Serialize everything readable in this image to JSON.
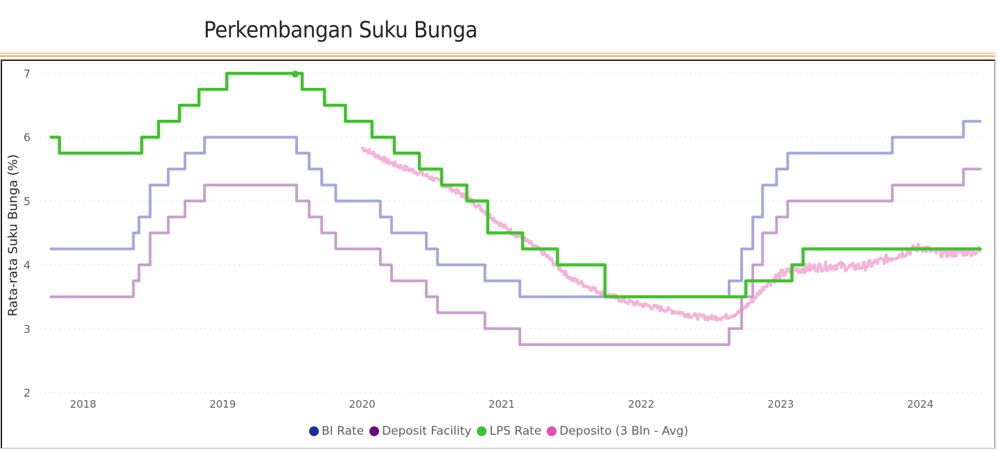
{
  "title": "Perkembangan Suku Bunga",
  "colors": {
    "accent_rule_light": "#f9c99a",
    "accent_rule_dark": "#f2a55d",
    "bi_rate_line": "#a3a8dc",
    "deposit_facility_line": "#c99fcf",
    "lps_rate_line": "#3ec42a",
    "deposito_line": "#f5b3d9",
    "bi_rate_legend": "#1a2ea0",
    "deposit_facility_legend": "#6b0a7e",
    "lps_rate_legend": "#39c22b",
    "deposito_legend": "#e64db5"
  },
  "legend": [
    {
      "label": "BI Rate",
      "color": "#1a2ea0"
    },
    {
      "label": "Deposit Facility",
      "color": "#6b0a7e"
    },
    {
      "label": "LPS Rate",
      "color": "#39c22b"
    },
    {
      "label": "Deposito (3 Bln - Avg)",
      "color": "#e64db5"
    }
  ],
  "chart_data": {
    "type": "line",
    "title": "Perkembangan Suku Bunga",
    "xlabel": "",
    "ylabel": "Rata-rata Suku Bunga (%)",
    "ylim": [
      2,
      7
    ],
    "yticks": [
      2,
      3,
      4,
      5,
      6,
      7
    ],
    "xlim": [
      2017.77,
      2024.43
    ],
    "xticks": [
      2018,
      2019,
      2020,
      2021,
      2022,
      2023,
      2024
    ],
    "xtick_labels": [
      "2018",
      "2019",
      "2020",
      "2021",
      "2022",
      "2023",
      "2024"
    ],
    "grid": "horizontal-dotted",
    "legend_position": "bottom",
    "series": [
      {
        "name": "BI Rate",
        "step": true,
        "points": [
          [
            2017.77,
            4.25
          ],
          [
            2018.36,
            4.5
          ],
          [
            2018.4,
            4.75
          ],
          [
            2018.48,
            5.25
          ],
          [
            2018.61,
            5.5
          ],
          [
            2018.73,
            5.75
          ],
          [
            2018.87,
            6.0
          ],
          [
            2019.53,
            5.75
          ],
          [
            2019.62,
            5.5
          ],
          [
            2019.71,
            5.25
          ],
          [
            2019.81,
            5.0
          ],
          [
            2020.13,
            4.75
          ],
          [
            2020.21,
            4.5
          ],
          [
            2020.46,
            4.25
          ],
          [
            2020.54,
            4.0
          ],
          [
            2020.88,
            3.75
          ],
          [
            2021.13,
            3.5
          ],
          [
            2022.63,
            3.75
          ],
          [
            2022.72,
            4.25
          ],
          [
            2022.8,
            4.75
          ],
          [
            2022.87,
            5.25
          ],
          [
            2022.97,
            5.5
          ],
          [
            2023.05,
            5.75
          ],
          [
            2023.8,
            6.0
          ],
          [
            2024.31,
            6.25
          ],
          [
            2024.43,
            6.25
          ]
        ]
      },
      {
        "name": "Deposit Facility",
        "step": true,
        "points": [
          [
            2017.77,
            3.5
          ],
          [
            2018.36,
            3.75
          ],
          [
            2018.4,
            4.0
          ],
          [
            2018.48,
            4.5
          ],
          [
            2018.61,
            4.75
          ],
          [
            2018.73,
            5.0
          ],
          [
            2018.87,
            5.25
          ],
          [
            2019.53,
            5.0
          ],
          [
            2019.62,
            4.75
          ],
          [
            2019.71,
            4.5
          ],
          [
            2019.81,
            4.25
          ],
          [
            2020.13,
            4.0
          ],
          [
            2020.21,
            3.75
          ],
          [
            2020.46,
            3.5
          ],
          [
            2020.54,
            3.25
          ],
          [
            2020.88,
            3.0
          ],
          [
            2021.13,
            2.75
          ],
          [
            2022.63,
            3.0
          ],
          [
            2022.72,
            3.5
          ],
          [
            2022.8,
            4.0
          ],
          [
            2022.87,
            4.5
          ],
          [
            2022.97,
            4.75
          ],
          [
            2023.05,
            5.0
          ],
          [
            2023.8,
            5.25
          ],
          [
            2024.31,
            5.5
          ],
          [
            2024.43,
            5.5
          ]
        ]
      },
      {
        "name": "LPS Rate",
        "step": true,
        "points": [
          [
            2017.77,
            6.0
          ],
          [
            2017.83,
            5.75
          ],
          [
            2018.42,
            6.0
          ],
          [
            2018.54,
            6.25
          ],
          [
            2018.69,
            6.5
          ],
          [
            2018.83,
            6.75
          ],
          [
            2019.03,
            7.0
          ],
          [
            2019.57,
            6.75
          ],
          [
            2019.73,
            6.5
          ],
          [
            2019.88,
            6.25
          ],
          [
            2020.07,
            6.0
          ],
          [
            2020.23,
            5.75
          ],
          [
            2020.41,
            5.5
          ],
          [
            2020.57,
            5.25
          ],
          [
            2020.75,
            5.0
          ],
          [
            2020.9,
            4.5
          ],
          [
            2021.15,
            4.25
          ],
          [
            2021.4,
            4.0
          ],
          [
            2021.74,
            3.5
          ],
          [
            2022.75,
            3.75
          ],
          [
            2023.08,
            4.0
          ],
          [
            2023.16,
            4.25
          ],
          [
            2024.43,
            4.25
          ]
        ],
        "marker": [
          2019.52,
          7.0
        ]
      },
      {
        "name": "Deposito (3 Bln - Avg)",
        "step": false,
        "noisy": true,
        "points": [
          [
            2020.0,
            5.83
          ],
          [
            2020.1,
            5.72
          ],
          [
            2020.2,
            5.6
          ],
          [
            2020.3,
            5.52
          ],
          [
            2020.4,
            5.45
          ],
          [
            2020.5,
            5.36
          ],
          [
            2020.6,
            5.24
          ],
          [
            2020.7,
            5.12
          ],
          [
            2020.8,
            4.98
          ],
          [
            2020.9,
            4.8
          ],
          [
            2021.0,
            4.62
          ],
          [
            2021.1,
            4.48
          ],
          [
            2021.2,
            4.34
          ],
          [
            2021.3,
            4.18
          ],
          [
            2021.4,
            3.98
          ],
          [
            2021.5,
            3.78
          ],
          [
            2021.6,
            3.68
          ],
          [
            2021.7,
            3.58
          ],
          [
            2021.8,
            3.5
          ],
          [
            2021.9,
            3.42
          ],
          [
            2022.0,
            3.38
          ],
          [
            2022.1,
            3.33
          ],
          [
            2022.2,
            3.29
          ],
          [
            2022.3,
            3.24
          ],
          [
            2022.4,
            3.19
          ],
          [
            2022.5,
            3.17
          ],
          [
            2022.6,
            3.18
          ],
          [
            2022.7,
            3.25
          ],
          [
            2022.8,
            3.45
          ],
          [
            2022.9,
            3.7
          ],
          [
            2023.0,
            3.85
          ],
          [
            2023.1,
            3.92
          ],
          [
            2023.2,
            3.95
          ],
          [
            2023.3,
            3.97
          ],
          [
            2023.4,
            3.99
          ],
          [
            2023.5,
            3.96
          ],
          [
            2023.6,
            3.98
          ],
          [
            2023.7,
            4.05
          ],
          [
            2023.8,
            4.12
          ],
          [
            2023.9,
            4.2
          ],
          [
            2024.0,
            4.28
          ],
          [
            2024.1,
            4.2
          ],
          [
            2024.2,
            4.18
          ],
          [
            2024.3,
            4.2
          ],
          [
            2024.43,
            4.22
          ]
        ]
      }
    ]
  }
}
